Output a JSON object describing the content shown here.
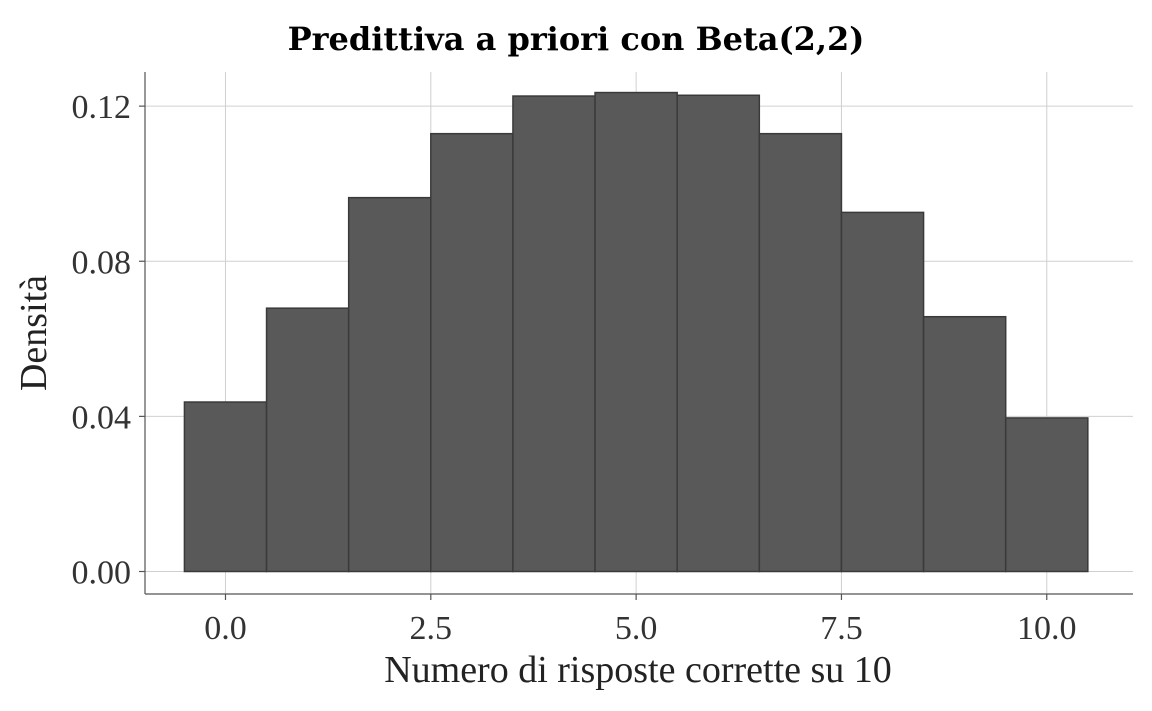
{
  "chart_data": {
    "type": "bar",
    "title": "Predittiva a priori con Beta(2,2)",
    "xlabel": "Numero di risposte corrette su 10",
    "ylabel": "Densità",
    "x": [
      0,
      1,
      2,
      3,
      4,
      5,
      6,
      7,
      8,
      9,
      10
    ],
    "values": [
      0.0437,
      0.0679,
      0.0964,
      0.1129,
      0.1226,
      0.1235,
      0.1228,
      0.1129,
      0.0926,
      0.0657,
      0.0396
    ],
    "bin_width": 1,
    "xlim": [
      -0.98,
      11.05
    ],
    "ylim": [
      -0.0058,
      0.1288
    ],
    "x_ticks": [
      0.0,
      2.5,
      5.0,
      7.5,
      10.0
    ],
    "x_tick_labels": [
      "0.0",
      "2.5",
      "5.0",
      "7.5",
      "10.0"
    ],
    "y_ticks": [
      0.0,
      0.04,
      0.08,
      0.12
    ],
    "y_tick_labels": [
      "0.00",
      "0.04",
      "0.08",
      "0.12"
    ],
    "grid": true,
    "bar_color": "#595959",
    "bar_edge_color": "#3a3a3a"
  }
}
